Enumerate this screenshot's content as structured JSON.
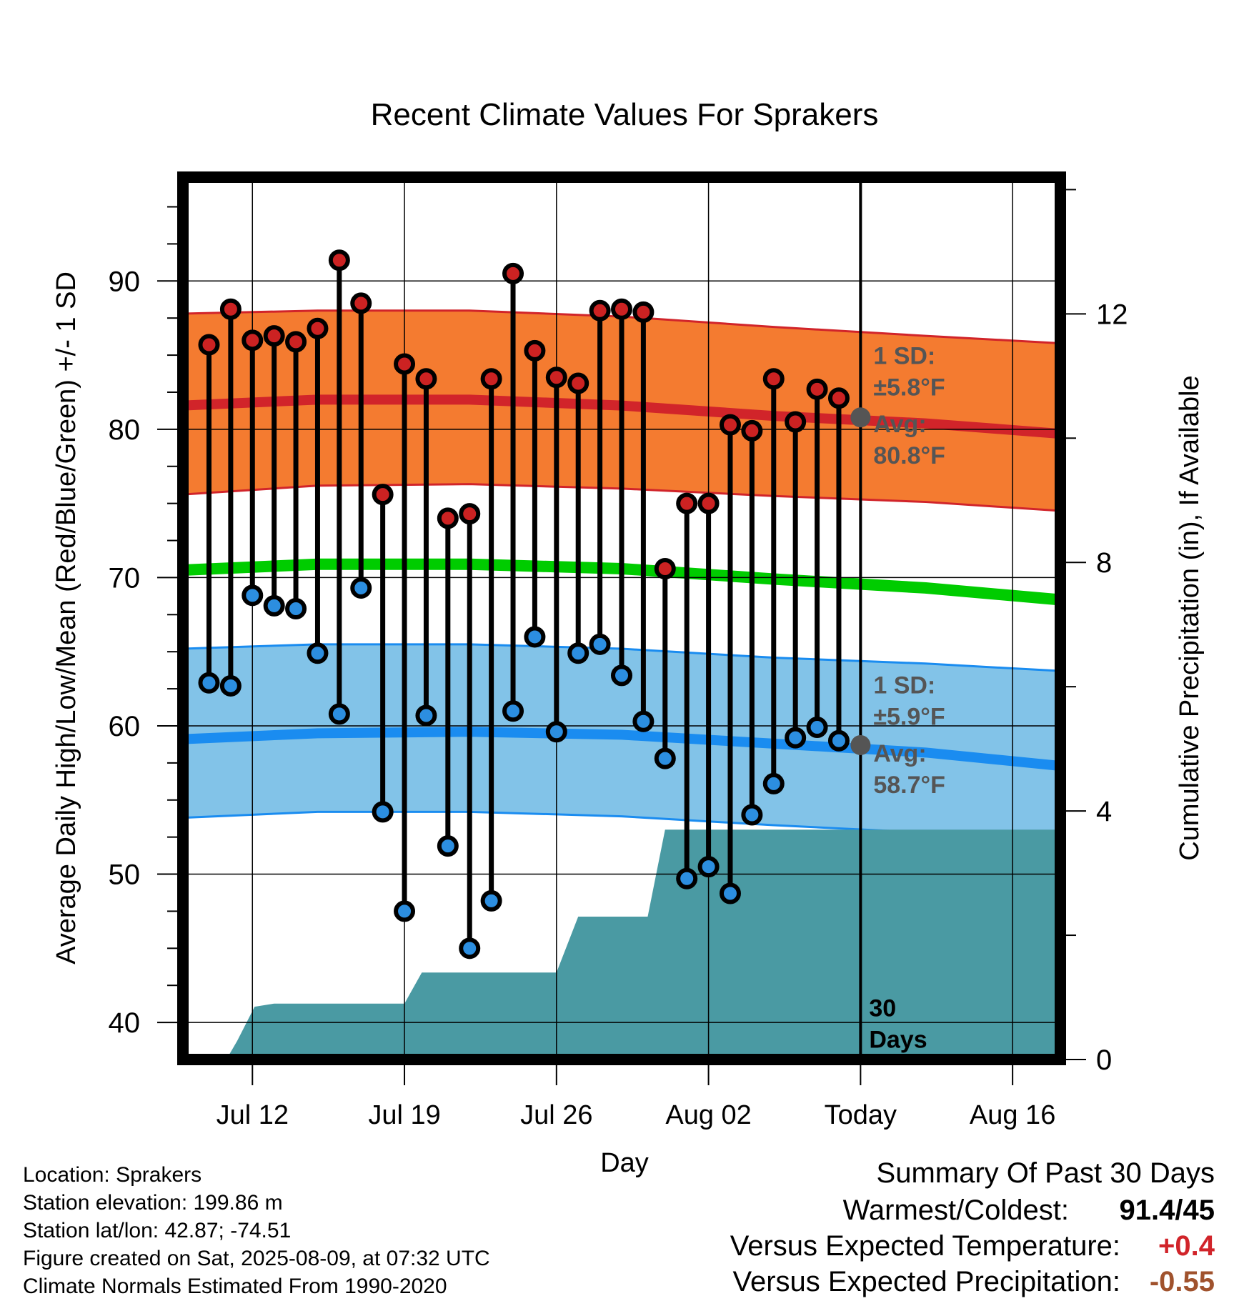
{
  "chart_data": {
    "type": "line",
    "title": "Recent Climate Values For Sprakers",
    "xlabel": "Day",
    "ylabel": "Average Daily High/Low/Mean (Red/Blue/Green) +/- 1 SD",
    "y2label": "Cumulative Precipitation (in), If Available",
    "ylim": [
      37.5,
      97
    ],
    "y2lim": [
      0,
      14.2
    ],
    "y_ticks": [
      40,
      50,
      60,
      70,
      80,
      90
    ],
    "y2_ticks": [
      0,
      4,
      8,
      12
    ],
    "x_ticks": [
      {
        "day": 12,
        "label": "Jul 12"
      },
      {
        "day": 19,
        "label": "Jul 19"
      },
      {
        "day": 26,
        "label": "Jul 26"
      },
      {
        "day": 33,
        "label": "Aug 02"
      },
      {
        "day": 40,
        "label": "Today"
      },
      {
        "day": 47,
        "label": "Aug 16"
      }
    ],
    "x_range": [
      8.8,
      49.2
    ],
    "days": [
      10,
      11,
      12,
      13,
      14,
      15,
      16,
      17,
      18,
      19,
      20,
      21,
      22,
      23,
      24,
      25,
      26,
      27,
      28,
      29,
      30,
      31,
      32,
      33,
      34,
      35,
      36,
      37,
      38,
      39
    ],
    "highs": [
      85.7,
      88.1,
      86.0,
      86.3,
      85.9,
      86.8,
      91.4,
      88.5,
      75.6,
      84.4,
      83.4,
      74.0,
      74.3,
      83.4,
      90.5,
      85.3,
      83.5,
      83.1,
      88.0,
      88.1,
      87.9,
      70.6,
      75.0,
      75.0,
      80.3,
      79.9,
      83.4,
      80.5,
      82.7,
      82.1
    ],
    "lows": [
      62.9,
      62.7,
      68.8,
      68.1,
      67.9,
      64.9,
      60.8,
      69.3,
      54.2,
      47.5,
      60.7,
      51.9,
      45.0,
      48.2,
      61.0,
      66.0,
      59.6,
      64.9,
      65.5,
      63.4,
      60.3,
      57.8,
      49.7,
      50.5,
      48.7,
      54.0,
      56.1,
      59.2,
      59.9,
      59.0
    ],
    "normal_high": {
      "x": [
        8.8,
        15,
        22,
        29,
        36,
        43,
        49.2
      ],
      "avg": [
        81.6,
        82.0,
        82.0,
        81.6,
        80.9,
        80.4,
        79.7
      ],
      "upper": [
        87.8,
        88.0,
        88.0,
        87.6,
        86.9,
        86.3,
        85.8
      ],
      "lower": [
        75.6,
        76.2,
        76.3,
        76.0,
        75.5,
        75.1,
        74.5
      ]
    },
    "normal_low": {
      "x": [
        8.8,
        15,
        22,
        29,
        36,
        43,
        49.2
      ],
      "avg": [
        59.1,
        59.5,
        59.6,
        59.4,
        58.8,
        58.2,
        57.3
      ],
      "upper": [
        65.2,
        65.5,
        65.5,
        65.2,
        64.6,
        64.2,
        63.7
      ],
      "lower": [
        53.8,
        54.2,
        54.2,
        53.9,
        53.3,
        52.8,
        51.9
      ]
    },
    "normal_mean": {
      "x": [
        8.8,
        15,
        22,
        29,
        36,
        43,
        49.2
      ],
      "values": [
        70.5,
        70.9,
        70.9,
        70.6,
        69.9,
        69.3,
        68.5
      ]
    },
    "precip": {
      "x": [
        10.8,
        11.3,
        12.1,
        13.0,
        19.0,
        19.8,
        26.0,
        27.0,
        30.2,
        31.0,
        49.2
      ],
      "values": [
        0.0,
        0.3,
        0.85,
        0.9,
        0.9,
        1.4,
        1.4,
        2.3,
        2.3,
        3.7,
        3.7
      ]
    },
    "today_day": 40,
    "annotations": {
      "high_sd": [
        "1 SD:",
        "±5.8°F"
      ],
      "high_avg": [
        "Avg:",
        "80.8°F"
      ],
      "high_avg_value": 80.8,
      "low_sd": [
        "1 SD:",
        "±5.9°F"
      ],
      "low_avg": [
        "Avg:",
        "58.7°F"
      ],
      "low_avg_value": 58.7,
      "days": [
        "30",
        "Days"
      ]
    },
    "colors": {
      "high_band": "#f47b30",
      "high_line": "#d1242a",
      "low_band": "#82c3e8",
      "low_line": "#1a8cf0",
      "mean_line": "#00cc00",
      "precip": "#4a9aa3",
      "high_dot": "#cc2222",
      "low_dot": "#2c8ee0",
      "annotation": "#555555"
    }
  },
  "info": {
    "location": "Location: Sprakers",
    "elevation": "Station elevation: 199.86 m",
    "latlon": "Station lat/lon: 42.87; -74.51",
    "created": "Figure created on Sat, 2025-08-09, at 07:32 UTC",
    "normals": "Climate Normals Estimated From 1990-2020"
  },
  "summary": {
    "title": "Summary Of Past 30 Days",
    "warmest_label": "Warmest/Coldest:",
    "warmest_value": "91.4/45",
    "temp_label": "Versus Expected Temperature:",
    "temp_value": "+0.4",
    "temp_color": "#d1242a",
    "precip_label": "Versus Expected Precipitation:",
    "precip_value": "-0.55",
    "precip_color": "#a0522d"
  }
}
